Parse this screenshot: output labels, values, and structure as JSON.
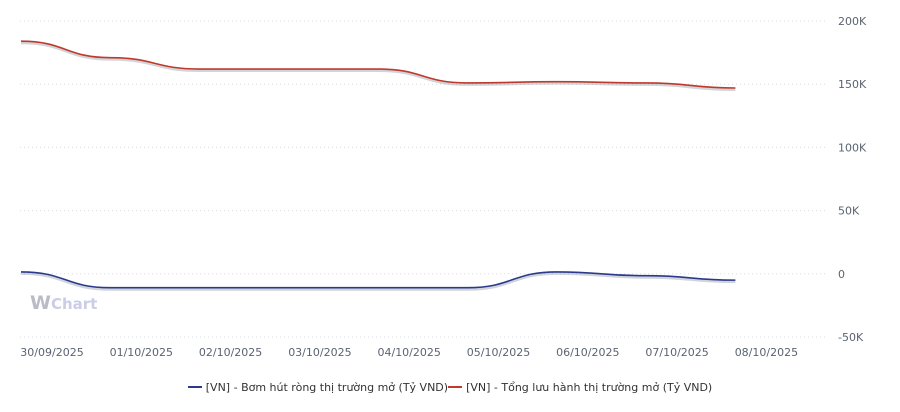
{
  "chart_data": {
    "type": "line",
    "x": [
      "30/09/2025",
      "01/10/2025",
      "02/10/2025",
      "03/10/2025",
      "04/10/2025",
      "05/10/2025",
      "06/10/2025",
      "07/10/2025",
      "08/10/2025"
    ],
    "y_ticks": [
      "200K",
      "150K",
      "100K",
      "50K",
      "0",
      "-50K"
    ],
    "ylim": [
      -50000,
      200000
    ],
    "grid": "dotted horizontal",
    "legend_position": "bottom",
    "series": [
      {
        "name": "[VN] - Bơm hút ròng thị trường mở (Tỷ VND)",
        "color": "#2b3a8c",
        "values": [
          1500,
          -11000,
          -11000,
          -11000,
          -11000,
          -11000,
          1500,
          -1500,
          -5000
        ]
      },
      {
        "name": "[VN] - Tổng lưu hành thị trường mở (Tỷ VND)",
        "color": "#c0392b",
        "values": [
          184000,
          171000,
          162000,
          162000,
          162000,
          151000,
          152000,
          151000,
          147000
        ]
      }
    ]
  },
  "watermark": {
    "w": "W",
    "text": "Chart"
  }
}
